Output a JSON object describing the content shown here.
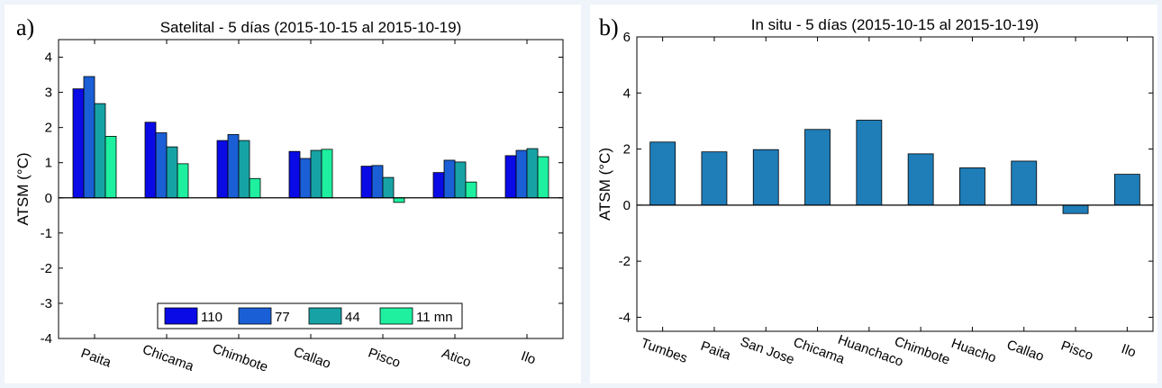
{
  "chart_data": [
    {
      "type": "bar",
      "panel_label": "a)",
      "title": "Satelital - 5 días (2015-10-15  al  2015-10-19)",
      "xlabel": "",
      "ylabel": "ATSM  (°C)",
      "ylim": [
        -4,
        4.5
      ],
      "yticks": [
        -4,
        -3,
        -2,
        -1,
        0,
        1,
        2,
        3,
        4
      ],
      "categories": [
        "Paita",
        "Chicama",
        "Chimbote",
        "Callao",
        "Pisco",
        "Atico",
        "Ilo"
      ],
      "series": [
        {
          "name": "110",
          "color": "#0a0ae6",
          "values": [
            3.1,
            2.15,
            1.63,
            1.32,
            0.9,
            0.72,
            1.2
          ]
        },
        {
          "name": "77",
          "color": "#1a5fd6",
          "values": [
            3.45,
            1.85,
            1.8,
            1.12,
            0.92,
            1.07,
            1.35
          ]
        },
        {
          "name": "44",
          "color": "#17a3a6",
          "values": [
            2.68,
            1.45,
            1.63,
            1.35,
            0.58,
            1.02,
            1.4
          ]
        },
        {
          "name": "11 mn",
          "color": "#1ef0a0",
          "values": [
            1.75,
            0.97,
            0.55,
            1.38,
            -0.13,
            0.45,
            1.17
          ]
        }
      ],
      "legend_placement": "bottom-center",
      "grid": false
    },
    {
      "type": "bar",
      "panel_label": "b)",
      "title": "In situ - 5 días (2015-10-15  al  2015-10-19)",
      "xlabel": "",
      "ylabel": "ATSM  (°C)",
      "ylim": [
        -4.5,
        6
      ],
      "yticks": [
        -4,
        -2,
        0,
        2,
        4,
        6
      ],
      "categories": [
        "Tumbes",
        "Paita",
        "San Jose",
        "Chicama",
        "Huanchaco",
        "Chimbote",
        "Huacho",
        "Callao",
        "Pisco",
        "Ilo"
      ],
      "series": [
        {
          "color": "#1f7db8",
          "values": [
            2.25,
            1.9,
            1.98,
            2.7,
            3.03,
            1.83,
            1.33,
            1.57,
            -0.3,
            1.1
          ]
        }
      ],
      "grid": false
    }
  ]
}
